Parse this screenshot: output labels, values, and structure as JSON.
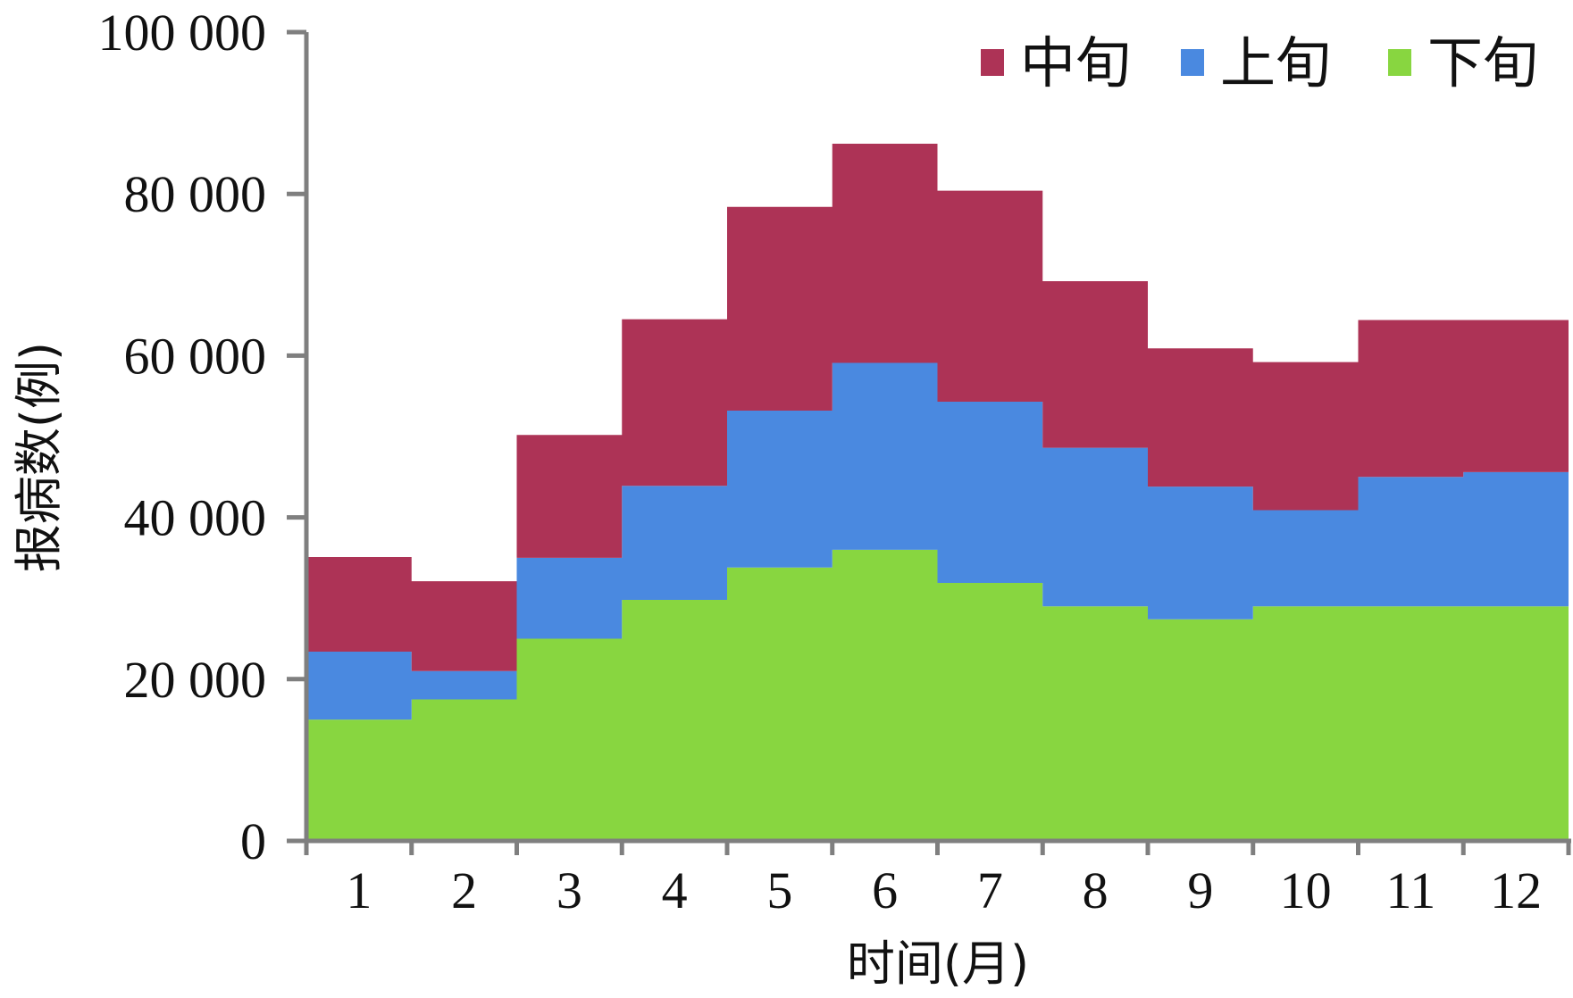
{
  "chart_data": {
    "type": "area",
    "stacked": true,
    "step": true,
    "categories": [
      "1",
      "2",
      "3",
      "4",
      "5",
      "6",
      "7",
      "8",
      "9",
      "10",
      "11",
      "12"
    ],
    "series": [
      {
        "name": "下旬",
        "color": "#88d640",
        "values": [
          15000,
          17500,
          25000,
          29800,
          33800,
          36000,
          31900,
          29000,
          27400,
          29000,
          29000,
          29000
        ]
      },
      {
        "name": "上旬",
        "color": "#4a89e0",
        "values": [
          8400,
          3500,
          10000,
          14100,
          19400,
          23100,
          22400,
          19600,
          16400,
          11900,
          16000,
          16600
        ]
      },
      {
        "name": "中旬",
        "color": "#ad3356",
        "values": [
          11700,
          11100,
          15200,
          20600,
          25200,
          27100,
          26100,
          20600,
          17100,
          18300,
          19400,
          18800
        ]
      }
    ],
    "legend_order": [
      "中旬",
      "上旬",
      "下旬"
    ],
    "legend_position": "top-right",
    "xlabel": "时间(月)",
    "ylabel": "报病数(例)",
    "ylim": [
      0,
      100000
    ],
    "yticks": [
      0,
      20000,
      40000,
      60000,
      80000,
      100000
    ],
    "ytick_labels": [
      "0",
      "20 000",
      "40 000",
      "60 000",
      "80 000",
      "100 000"
    ],
    "grid": false,
    "axis_color": "#7f7f7f"
  }
}
